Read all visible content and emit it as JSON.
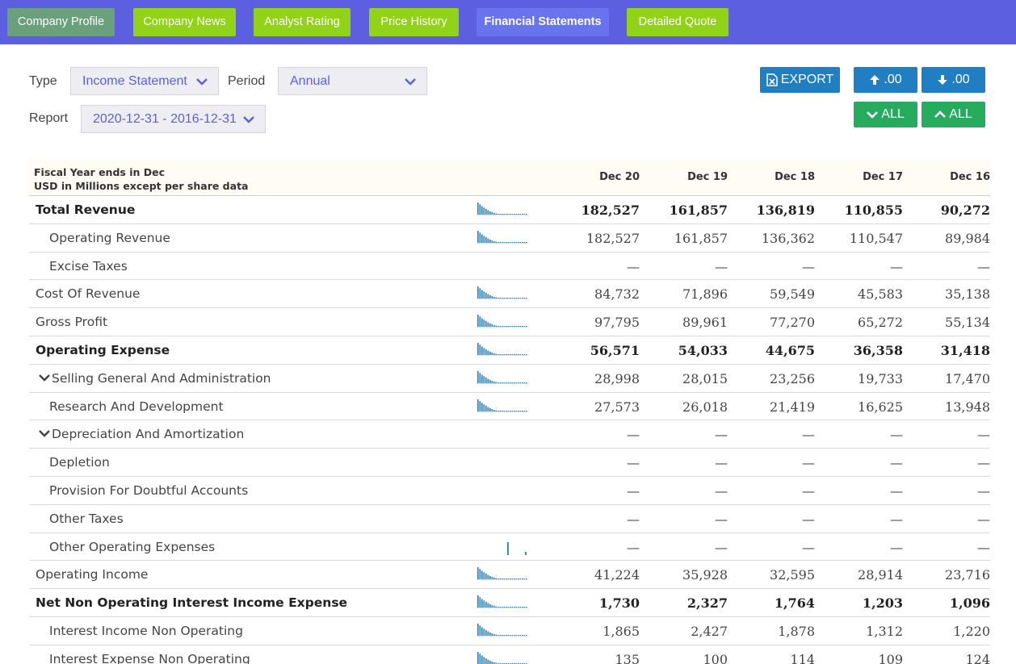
{
  "nav": {
    "tabs": [
      {
        "label": "Company Profile",
        "style": "grey"
      },
      {
        "label": "Company News",
        "style": "green"
      },
      {
        "label": "Analyst Rating",
        "style": "green"
      },
      {
        "label": "Price History",
        "style": "green"
      },
      {
        "label": "Financial Statements",
        "style": "active"
      },
      {
        "label": "Detailed Quote",
        "style": "green"
      }
    ]
  },
  "controls": {
    "type_label": "Type",
    "type_value": "Income Statement",
    "period_label": "Period",
    "period_value": "Annual",
    "report_label": "Report",
    "report_value": "2020-12-31 - 2016-12-31",
    "export_label": "EXPORT",
    "decimal_up_label": ".00",
    "decimal_down_label": ".00",
    "collapse_all_label": "ALL",
    "expand_all_label": "ALL"
  },
  "table": {
    "header_line1": "Fiscal Year ends in Dec",
    "header_line2": "USD in Millions except per share data",
    "columns": [
      "Dec 20",
      "Dec 19",
      "Dec 18",
      "Dec 17",
      "Dec 16"
    ],
    "rows": [
      {
        "label": "Total Revenue",
        "bold": true,
        "indent": 0,
        "toggle": false,
        "spark": "bars",
        "values": [
          "182,527",
          "161,857",
          "136,819",
          "110,855",
          "90,272"
        ]
      },
      {
        "label": "Operating Revenue",
        "bold": false,
        "indent": 1,
        "toggle": false,
        "spark": "bars",
        "values": [
          "182,527",
          "161,857",
          "136,362",
          "110,547",
          "89,984"
        ]
      },
      {
        "label": "Excise Taxes",
        "bold": false,
        "indent": 1,
        "toggle": false,
        "spark": "none",
        "values": [
          "—",
          "—",
          "—",
          "—",
          "—"
        ]
      },
      {
        "label": "Cost Of Revenue",
        "bold": false,
        "indent": 0,
        "toggle": false,
        "spark": "bars",
        "values": [
          "84,732",
          "71,896",
          "59,549",
          "45,583",
          "35,138"
        ]
      },
      {
        "label": "Gross Profit",
        "bold": false,
        "indent": 0,
        "toggle": false,
        "spark": "bars",
        "values": [
          "97,795",
          "89,961",
          "77,270",
          "65,272",
          "55,134"
        ]
      },
      {
        "label": "Operating Expense",
        "bold": true,
        "indent": 0,
        "toggle": false,
        "spark": "bars",
        "values": [
          "56,571",
          "54,033",
          "44,675",
          "36,358",
          "31,418"
        ]
      },
      {
        "label": "Selling General And Administration",
        "bold": false,
        "indent": 0,
        "toggle": true,
        "spark": "bars",
        "values": [
          "28,998",
          "28,015",
          "23,256",
          "19,733",
          "17,470"
        ]
      },
      {
        "label": "Research And Development",
        "bold": false,
        "indent": 1,
        "toggle": false,
        "spark": "bars",
        "values": [
          "27,573",
          "26,018",
          "21,419",
          "16,625",
          "13,948"
        ]
      },
      {
        "label": "Depreciation And Amortization",
        "bold": false,
        "indent": 0,
        "toggle": true,
        "spark": "none",
        "values": [
          "—",
          "—",
          "—",
          "—",
          "—"
        ]
      },
      {
        "label": "Depletion",
        "bold": false,
        "indent": 1,
        "toggle": false,
        "spark": "none",
        "values": [
          "—",
          "—",
          "—",
          "—",
          "—"
        ]
      },
      {
        "label": "Provision For Doubtful Accounts",
        "bold": false,
        "indent": 1,
        "toggle": false,
        "spark": "none",
        "values": [
          "—",
          "—",
          "—",
          "—",
          "—"
        ]
      },
      {
        "label": "Other Taxes",
        "bold": false,
        "indent": 1,
        "toggle": false,
        "spark": "none",
        "values": [
          "—",
          "—",
          "—",
          "—",
          "—"
        ]
      },
      {
        "label": "Other Operating Expenses",
        "bold": false,
        "indent": 1,
        "toggle": false,
        "spark": "sparse",
        "values": [
          "—",
          "—",
          "—",
          "—",
          "—"
        ]
      },
      {
        "label": "Operating Income",
        "bold": false,
        "indent": 0,
        "toggle": false,
        "spark": "bars",
        "values": [
          "41,224",
          "35,928",
          "32,595",
          "28,914",
          "23,716"
        ]
      },
      {
        "label": "Net Non Operating Interest Income Expense",
        "bold": true,
        "indent": 0,
        "toggle": false,
        "spark": "bars",
        "values": [
          "1,730",
          "2,327",
          "1,764",
          "1,203",
          "1,096"
        ]
      },
      {
        "label": "Interest Income Non Operating",
        "bold": false,
        "indent": 1,
        "toggle": false,
        "spark": "bars",
        "values": [
          "1,865",
          "2,427",
          "1,878",
          "1,312",
          "1,220"
        ]
      },
      {
        "label": "Interest Expense Non Operating",
        "bold": false,
        "indent": 1,
        "toggle": false,
        "spark": "bars",
        "values": [
          "135",
          "100",
          "114",
          "109",
          "124"
        ]
      }
    ]
  },
  "colors": {
    "nav_bg": "#5b5fe0",
    "tab_green": "#92d219",
    "tab_active": "#6a73ee",
    "btn_blue": "#1f7fc2",
    "btn_green": "#26ab5f",
    "spark": "#2a7fb8"
  },
  "icons": {
    "export": "excel-file-icon",
    "decimal_up": "arrow-up-icon",
    "decimal_down": "arrow-down-icon",
    "collapse_all": "chevron-down-icon",
    "expand_all": "chevron-up-icon",
    "select": "chevron-down-icon",
    "row_toggle": "chevron-down-icon"
  }
}
